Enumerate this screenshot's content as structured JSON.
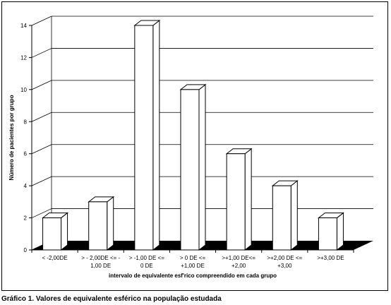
{
  "caption": "Gráfico 1. Valores de equivalente esférico na população estudada",
  "chart_data": {
    "type": "bar",
    "title": "",
    "xlabel": "intervalo de equivalente esf'rico compreendido em cada grupo",
    "ylabel": "Número de pacientes por grupo",
    "ylim": [
      0,
      14
    ],
    "yticks": [
      0,
      2,
      4,
      6,
      8,
      10,
      12,
      14
    ],
    "grid": true,
    "categories": [
      [
        "< -2,00DE"
      ],
      [
        "> - 2,00DE <= -",
        "1,00 DE"
      ],
      [
        "> -1,00 DE <=",
        "0 DE"
      ],
      [
        "> 0 DE <=",
        "+1,00 DE"
      ],
      [
        ">+1,00 DE<=",
        "+2,00"
      ],
      [
        ">+2,00 DE <=",
        "+3,00"
      ],
      [
        ">+3,00 DE"
      ]
    ],
    "values": [
      2,
      3,
      14,
      10,
      6,
      4,
      2
    ],
    "colors": {
      "bar_face": "#ffffff",
      "floor": "#000000",
      "grid": "#000000"
    }
  }
}
